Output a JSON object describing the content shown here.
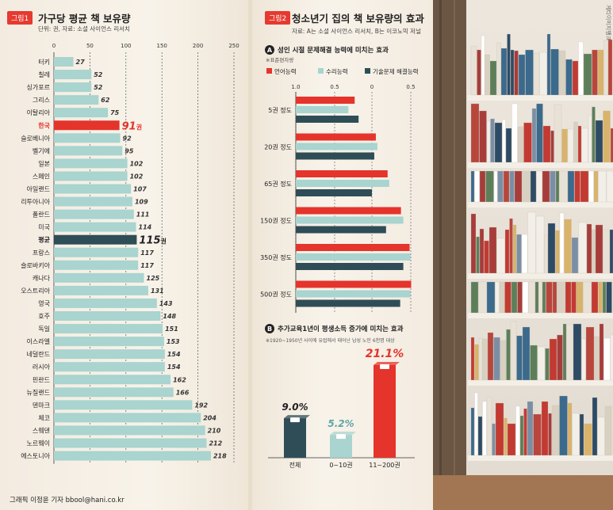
{
  "left": {
    "tag": "그림1",
    "title": "가구당 평균 책 보유량",
    "source": "단위: 권, 자료: 소셜 사이언스 리서치",
    "unit_suffix": "권",
    "credit": "그래픽 이정윤 기자 bbool@hani.co.kr"
  },
  "right": {
    "tag": "그림2",
    "title": "청소년기 집의 책 보유량의 효과",
    "source": "자료: A는 소셜 사이언스 리서치, B는 이코노믹 저널",
    "sectionA": {
      "badge": "A",
      "title": "성인 시절 문제해결 능력에 미치는 효과",
      "note": "※표준편차량"
    },
    "sectionB": {
      "badge": "B",
      "title": "추가교육1년이 평생소득 증가에 미치는 효과",
      "note": "※1920~1950년 사이에 유럽에서 태어난 남성 노인 6천명 대상"
    },
    "vertical_credit": "게티이미지뱅크"
  },
  "colors": {
    "teal": "#a9d4cf",
    "red": "#e5342b",
    "dark": "#2f4d57",
    "grid": "#555555"
  },
  "chart_data": [
    {
      "type": "bar",
      "orientation": "horizontal",
      "title": "가구당 평균 책 보유량",
      "xlim": [
        0,
        250
      ],
      "xticks": [
        0,
        50,
        100,
        150,
        200,
        250
      ],
      "categories": [
        "터키",
        "칠레",
        "싱가포르",
        "그리스",
        "이탈리아",
        "한국",
        "슬로베니아",
        "벨기에",
        "일본",
        "스페인",
        "아일랜드",
        "리투아니아",
        "폴란드",
        "미국",
        "평균",
        "프랑스",
        "슬로바키아",
        "캐나다",
        "오스트리아",
        "영국",
        "호주",
        "독일",
        "이스라엘",
        "네덜란드",
        "러시아",
        "핀란드",
        "뉴질랜드",
        "덴마크",
        "체코",
        "스웨덴",
        "노르웨이",
        "에스토니아"
      ],
      "values": [
        27,
        52,
        52,
        62,
        75,
        91,
        92,
        95,
        102,
        102,
        107,
        109,
        111,
        114,
        115,
        117,
        117,
        125,
        131,
        143,
        148,
        151,
        153,
        154,
        154,
        162,
        166,
        192,
        204,
        210,
        212,
        218
      ],
      "highlight": {
        "한국": "red",
        "평균": "dark"
      }
    },
    {
      "type": "bar",
      "orientation": "horizontal",
      "title": "성인 시절 문제해결 능력에 미치는 효과",
      "xticks": [
        "1.0",
        "0.5",
        "0",
        "0.5"
      ],
      "categories": [
        "5권 정도",
        "20권 정도",
        "65권 정도",
        "150권 정도",
        "350권 정도",
        "500권 정도"
      ],
      "series": [
        {
          "name": "언어능력",
          "values": [
            -0.22,
            0.05,
            0.2,
            0.37,
            0.48,
            0.5
          ]
        },
        {
          "name": "수리능력",
          "values": [
            -0.3,
            0.07,
            0.22,
            0.4,
            0.49,
            0.49
          ]
        },
        {
          "name": "기술문제 해결능력",
          "values": [
            -0.17,
            0.03,
            0.0,
            0.18,
            0.4,
            0.36
          ]
        }
      ],
      "legend": "top"
    },
    {
      "type": "bar",
      "title": "추가교육1년이 평생소득 증가에 미치는 효과",
      "categories": [
        "전체",
        "0~10권",
        "11~200권"
      ],
      "values": [
        9.0,
        5.2,
        21.1
      ],
      "labels": [
        "9.0%",
        "5.2%",
        "21.1%"
      ]
    }
  ]
}
